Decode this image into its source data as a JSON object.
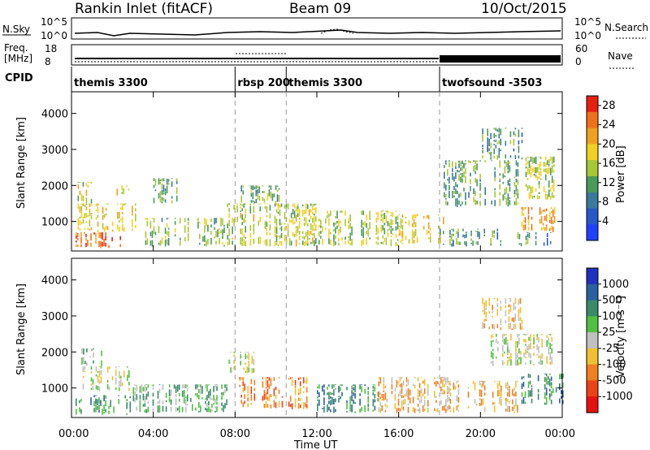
{
  "header": {
    "title": "Rankin Inlet (fitACF)",
    "beam": "Beam 09",
    "date": "10/Oct/2015"
  },
  "strip_labels": {
    "nsky": "N.Sky",
    "nsky_ticks": [
      "10^5",
      "10^0"
    ],
    "nsearch": "N.Search",
    "nsearch_ticks": [
      "10^5",
      "10^0"
    ],
    "freq_line1": "Freq.",
    "freq_line2": "[MHz]",
    "freq_ticks": [
      "18",
      "8"
    ],
    "nave": "Nave",
    "nave_ticks": [
      "60",
      "0"
    ],
    "cpid": "CPID"
  },
  "cpid_segments": [
    {
      "label": "themis 3300",
      "start_hour": 0.0,
      "end_hour": 8.0
    },
    {
      "label": "rbsp 200",
      "start_hour": 8.0,
      "end_hour": 10.5
    },
    {
      "label": "themis 3300",
      "start_hour": 10.5,
      "end_hour": 18.0
    },
    {
      "label": "twofsound -3503",
      "start_hour": 18.0,
      "end_hour": 24.0
    }
  ],
  "chart_data": [
    {
      "type": "heatmap",
      "name": "Power",
      "xlabel": "",
      "ylabel": "Slant Range [km]",
      "xlim_hours": [
        0,
        24
      ],
      "ylim": [
        180,
        4600
      ],
      "yticks": [
        "1000",
        "2000",
        "3000",
        "4000"
      ],
      "colorbar": {
        "label": "Power [dB]",
        "ticks": [
          "4",
          "8",
          "12",
          "16",
          "20",
          "24",
          "28"
        ],
        "range": [
          0,
          30
        ],
        "colors": [
          "#2040ff",
          "#2858c8",
          "#3a7a9a",
          "#4a9a5a",
          "#a8c832",
          "#f0d020",
          "#f0a020",
          "#f07018",
          "#e82010"
        ]
      },
      "echo_regions": [
        {
          "t0": 0.2,
          "t1": 2.4,
          "r0": 250,
          "r1": 700,
          "level": 26
        },
        {
          "t0": 0.3,
          "t1": 3.2,
          "r0": 700,
          "r1": 1500,
          "level": 19
        },
        {
          "t0": 0.3,
          "t1": 1.2,
          "r0": 1500,
          "r1": 2100,
          "level": 17
        },
        {
          "t0": 2.2,
          "t1": 3.0,
          "r0": 1700,
          "r1": 2000,
          "level": 18
        },
        {
          "t0": 3.2,
          "t1": 7.5,
          "r0": 300,
          "r1": 1100,
          "level": 14
        },
        {
          "t0": 4.0,
          "t1": 5.2,
          "r0": 1500,
          "r1": 2200,
          "level": 12
        },
        {
          "t0": 7.6,
          "t1": 12.0,
          "r0": 300,
          "r1": 1500,
          "level": 16
        },
        {
          "t0": 8.2,
          "t1": 10.2,
          "r0": 1500,
          "r1": 2000,
          "level": 13
        },
        {
          "t0": 12.0,
          "t1": 16.0,
          "r0": 300,
          "r1": 1300,
          "level": 15
        },
        {
          "t0": 16.0,
          "t1": 18.2,
          "r0": 350,
          "r1": 1200,
          "level": 19
        },
        {
          "t0": 18.0,
          "t1": 21.0,
          "r0": 300,
          "r1": 800,
          "level": 10
        },
        {
          "t0": 18.2,
          "t1": 21.8,
          "r0": 1400,
          "r1": 2700,
          "level": 12
        },
        {
          "t0": 20.0,
          "t1": 22.0,
          "r0": 2700,
          "r1": 3600,
          "level": 10
        },
        {
          "t0": 22.0,
          "t1": 23.7,
          "r0": 700,
          "r1": 1400,
          "level": 22
        },
        {
          "t0": 22.2,
          "t1": 23.6,
          "r0": 1600,
          "r1": 2800,
          "level": 16
        },
        {
          "t0": 21.8,
          "t1": 23.5,
          "r0": 300,
          "r1": 700,
          "level": 9
        }
      ]
    },
    {
      "type": "heatmap",
      "name": "Velocity",
      "xlabel": "Time UT",
      "ylabel": "Slant Range [km]",
      "xlim_hours": [
        0,
        24
      ],
      "ylim": [
        180,
        4600
      ],
      "xticks": [
        "00:00",
        "04:00",
        "08:00",
        "12:00",
        "16:00",
        "20:00",
        "00:00"
      ],
      "yticks": [
        "1000",
        "2000",
        "3000",
        "4000"
      ],
      "colorbar": {
        "label": "Velocity [m s⁻¹]",
        "ticks": [
          "1000",
          "500",
          "100",
          "25",
          "-25",
          "-100",
          "-500",
          "-1000"
        ],
        "colors": [
          "#2030c0",
          "#2a60a0",
          "#3a8a6a",
          "#50c040",
          "#c0c0c0",
          "#f0c030",
          "#f08020",
          "#f04018",
          "#e81010"
        ]
      },
      "echo_regions": [
        {
          "t0": 0.2,
          "t1": 3.0,
          "r0": 250,
          "r1": 800,
          "level": 2
        },
        {
          "t0": 0.3,
          "t1": 2.8,
          "r0": 900,
          "r1": 1600,
          "level": 4
        },
        {
          "t0": 0.4,
          "t1": 1.5,
          "r0": 1600,
          "r1": 2100,
          "level": 3
        },
        {
          "t0": 3.0,
          "t1": 7.6,
          "r0": 300,
          "r1": 1100,
          "level": 3
        },
        {
          "t0": 7.6,
          "t1": 9.0,
          "r0": 1400,
          "r1": 2000,
          "level": 4
        },
        {
          "t0": 8.2,
          "t1": 11.5,
          "r0": 400,
          "r1": 1300,
          "level": 6
        },
        {
          "t0": 12.0,
          "t1": 15.0,
          "r0": 300,
          "r1": 1100,
          "level": 2
        },
        {
          "t0": 15.0,
          "t1": 18.5,
          "r0": 300,
          "r1": 1300,
          "level": 5
        },
        {
          "t0": 18.5,
          "t1": 21.8,
          "r0": 300,
          "r1": 1200,
          "level": 5
        },
        {
          "t0": 20.5,
          "t1": 23.5,
          "r0": 1600,
          "r1": 2500,
          "level": 4
        },
        {
          "t0": 22.0,
          "t1": 24.0,
          "r0": 500,
          "r1": 1400,
          "level": 2
        },
        {
          "t0": 20.0,
          "t1": 22.2,
          "r0": 2600,
          "r1": 3500,
          "level": 5
        }
      ]
    }
  ]
}
